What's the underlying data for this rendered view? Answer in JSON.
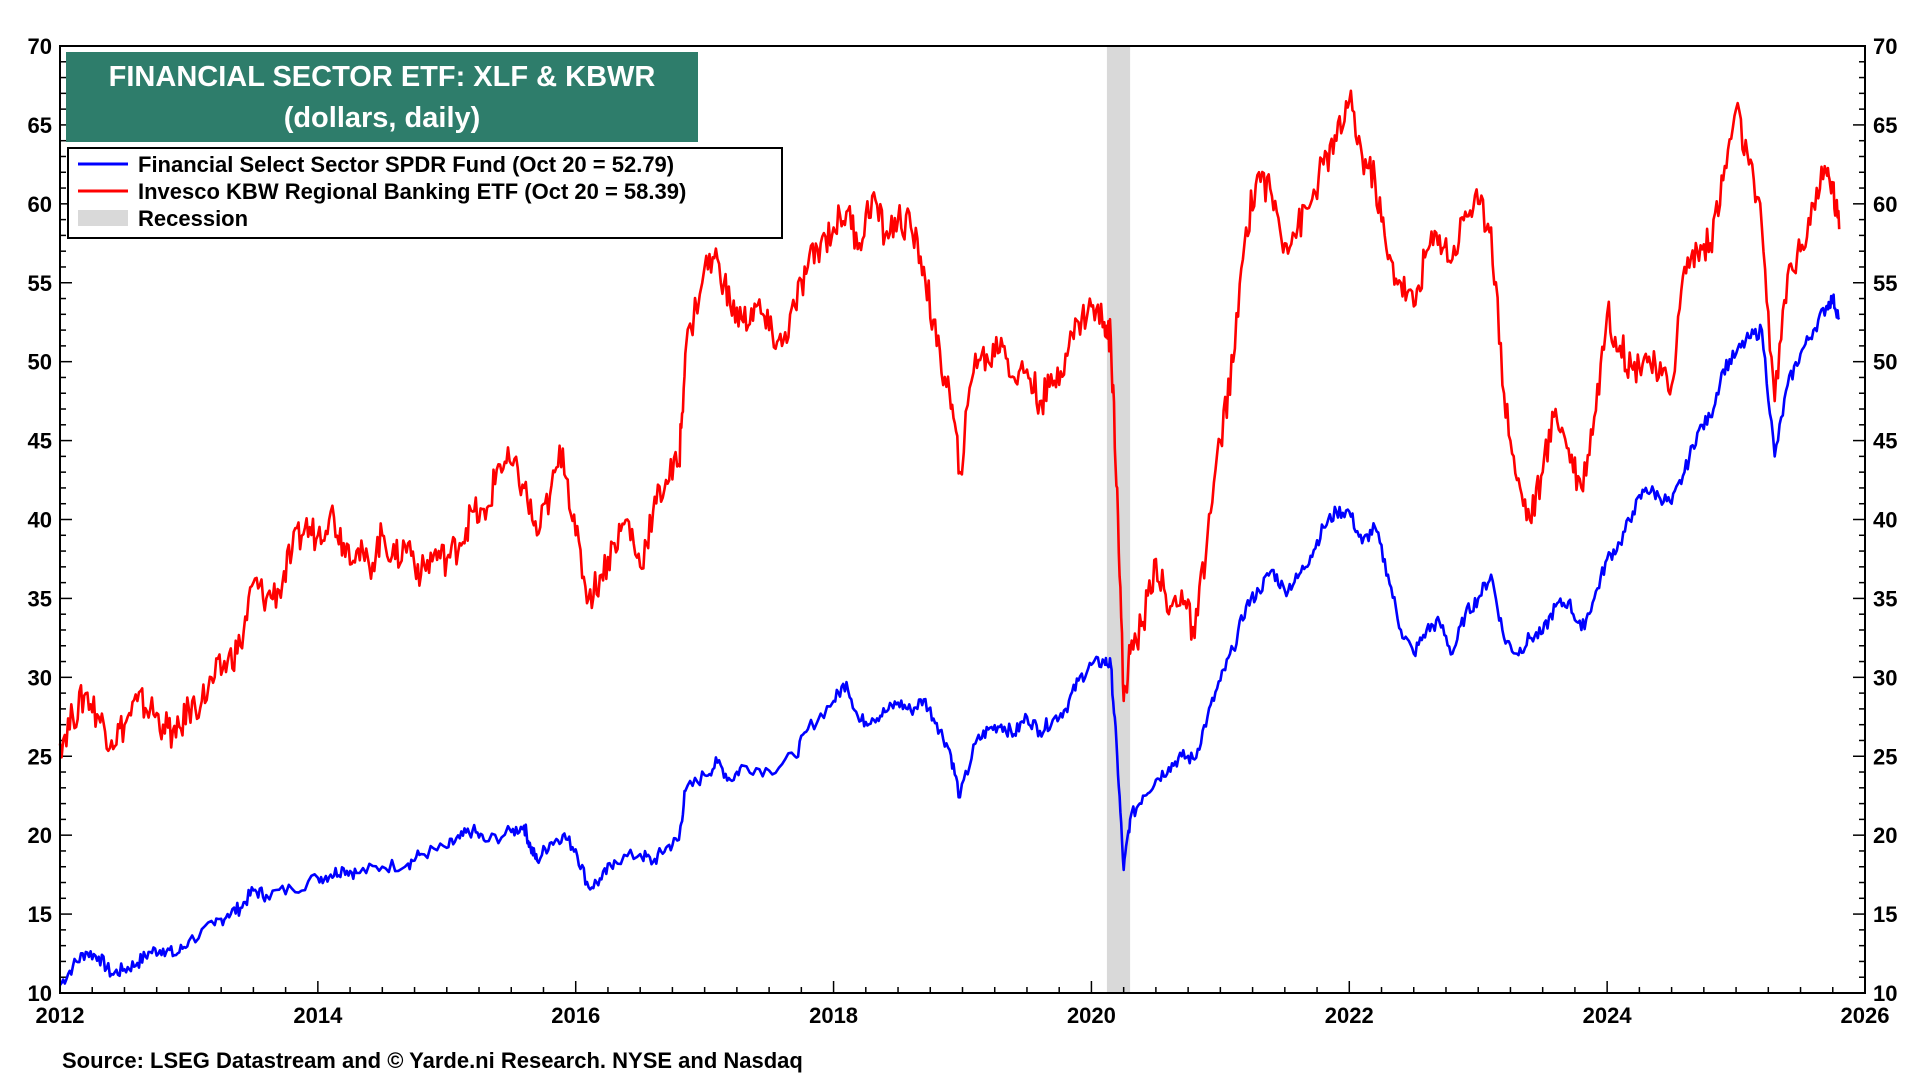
{
  "chart_data": {
    "type": "line",
    "title": "FINANCIAL SECTOR ETF: XLF & KBWR",
    "subtitle": "(dollars, daily)",
    "xlim": [
      2012,
      2026
    ],
    "ylim": [
      10,
      70
    ],
    "x_ticks": [
      "2012",
      "2014",
      "2016",
      "2018",
      "2020",
      "2022",
      "2024",
      "2026"
    ],
    "x_tick_values": [
      2012,
      2014,
      2016,
      2018,
      2020,
      2022,
      2024,
      2026
    ],
    "y_ticks": [
      "10",
      "15",
      "20",
      "25",
      "30",
      "35",
      "40",
      "45",
      "50",
      "55",
      "60",
      "65",
      "70"
    ],
    "y_tick_values": [
      10,
      15,
      20,
      25,
      30,
      35,
      40,
      45,
      50,
      55,
      60,
      65,
      70
    ],
    "legend_position": "top-left",
    "grid": false,
    "recession": {
      "label": "Recession",
      "start": 2020.12,
      "end": 2020.3,
      "color": "#d9d9d9"
    },
    "series": [
      {
        "name": "Financial Select Sector SPDR Fund (Oct 20 = 52.79)",
        "color": "#0000ff",
        "points": [
          [
            2012.0,
            10.5
          ],
          [
            2012.1,
            11.7
          ],
          [
            2012.2,
            12.6
          ],
          [
            2012.3,
            12.3
          ],
          [
            2012.4,
            11.2
          ],
          [
            2012.5,
            11.5
          ],
          [
            2012.6,
            11.9
          ],
          [
            2012.7,
            12.6
          ],
          [
            2012.8,
            12.8
          ],
          [
            2012.9,
            12.4
          ],
          [
            2013.0,
            13.3
          ],
          [
            2013.2,
            14.3
          ],
          [
            2013.3,
            15.0
          ],
          [
            2013.4,
            15.4
          ],
          [
            2013.5,
            16.5
          ],
          [
            2013.6,
            16.2
          ],
          [
            2013.8,
            16.6
          ],
          [
            2014.0,
            17.3
          ],
          [
            2014.1,
            17.5
          ],
          [
            2014.2,
            17.9
          ],
          [
            2014.3,
            17.6
          ],
          [
            2014.5,
            18.0
          ],
          [
            2014.7,
            18.2
          ],
          [
            2014.8,
            18.8
          ],
          [
            2015.0,
            19.2
          ],
          [
            2015.1,
            19.8
          ],
          [
            2015.2,
            20.3
          ],
          [
            2015.3,
            19.6
          ],
          [
            2015.5,
            20.2
          ],
          [
            2015.6,
            20.6
          ],
          [
            2015.65,
            19.2
          ],
          [
            2015.7,
            18.4
          ],
          [
            2015.8,
            19.5
          ],
          [
            2015.9,
            20.0
          ],
          [
            2016.0,
            19.1
          ],
          [
            2016.1,
            16.7
          ],
          [
            2016.2,
            17.2
          ],
          [
            2016.3,
            18.4
          ],
          [
            2016.5,
            18.8
          ],
          [
            2016.6,
            18.3
          ],
          [
            2016.7,
            19.2
          ],
          [
            2016.8,
            19.7
          ],
          [
            2016.85,
            22.8
          ],
          [
            2017.0,
            23.8
          ],
          [
            2017.1,
            24.6
          ],
          [
            2017.2,
            23.5
          ],
          [
            2017.3,
            24.4
          ],
          [
            2017.5,
            24.1
          ],
          [
            2017.7,
            25.0
          ],
          [
            2017.8,
            26.7
          ],
          [
            2018.0,
            28.5
          ],
          [
            2018.1,
            29.7
          ],
          [
            2018.2,
            27.2
          ],
          [
            2018.3,
            27.4
          ],
          [
            2018.4,
            27.8
          ],
          [
            2018.5,
            28.4
          ],
          [
            2018.6,
            27.9
          ],
          [
            2018.7,
            28.6
          ],
          [
            2018.8,
            27.1
          ],
          [
            2018.9,
            25.4
          ],
          [
            2018.98,
            22.4
          ],
          [
            2019.1,
            25.8
          ],
          [
            2019.2,
            26.7
          ],
          [
            2019.3,
            27.0
          ],
          [
            2019.4,
            26.4
          ],
          [
            2019.5,
            27.5
          ],
          [
            2019.6,
            26.6
          ],
          [
            2019.7,
            27.3
          ],
          [
            2019.8,
            28.0
          ],
          [
            2019.9,
            29.8
          ],
          [
            2020.0,
            30.8
          ],
          [
            2020.1,
            31.0
          ],
          [
            2020.15,
            30.8
          ],
          [
            2020.2,
            25.0
          ],
          [
            2020.25,
            17.8
          ],
          [
            2020.3,
            21.0
          ],
          [
            2020.4,
            22.5
          ],
          [
            2020.5,
            23.5
          ],
          [
            2020.6,
            24.3
          ],
          [
            2020.7,
            25.0
          ],
          [
            2020.8,
            24.8
          ],
          [
            2020.9,
            27.5
          ],
          [
            2021.0,
            29.8
          ],
          [
            2021.1,
            31.8
          ],
          [
            2021.2,
            34.5
          ],
          [
            2021.3,
            35.5
          ],
          [
            2021.4,
            36.8
          ],
          [
            2021.5,
            35.5
          ],
          [
            2021.6,
            36.3
          ],
          [
            2021.7,
            37.7
          ],
          [
            2021.8,
            39.5
          ],
          [
            2021.9,
            40.5
          ],
          [
            2022.0,
            40.5
          ],
          [
            2022.1,
            38.5
          ],
          [
            2022.2,
            39.5
          ],
          [
            2022.3,
            36.5
          ],
          [
            2022.4,
            33.0
          ],
          [
            2022.5,
            31.5
          ],
          [
            2022.6,
            33.0
          ],
          [
            2022.7,
            33.5
          ],
          [
            2022.8,
            31.5
          ],
          [
            2022.9,
            34.0
          ],
          [
            2023.0,
            35.0
          ],
          [
            2023.1,
            36.5
          ],
          [
            2023.2,
            32.5
          ],
          [
            2023.3,
            31.5
          ],
          [
            2023.4,
            32.5
          ],
          [
            2023.5,
            32.8
          ],
          [
            2023.6,
            34.5
          ],
          [
            2023.7,
            34.8
          ],
          [
            2023.8,
            33.0
          ],
          [
            2023.9,
            35.0
          ],
          [
            2024.0,
            37.5
          ],
          [
            2024.1,
            38.5
          ],
          [
            2024.2,
            40.5
          ],
          [
            2024.3,
            42.0
          ],
          [
            2024.4,
            41.5
          ],
          [
            2024.5,
            41.0
          ],
          [
            2024.6,
            43.0
          ],
          [
            2024.7,
            45.5
          ],
          [
            2024.8,
            46.5
          ],
          [
            2024.9,
            49.5
          ],
          [
            2025.0,
            50.5
          ],
          [
            2025.1,
            51.5
          ],
          [
            2025.2,
            52.0
          ],
          [
            2025.3,
            44.0
          ],
          [
            2025.4,
            48.5
          ],
          [
            2025.5,
            50.5
          ],
          [
            2025.6,
            52.0
          ],
          [
            2025.7,
            53.5
          ],
          [
            2025.75,
            54.0
          ],
          [
            2025.8,
            52.79
          ]
        ]
      },
      {
        "name": "Invesco KBW Regional Banking ETF (Oct 20 = 58.39)",
        "color": "#ff0000",
        "points": [
          [
            2012.0,
            25.8
          ],
          [
            2012.1,
            27.5
          ],
          [
            2012.2,
            29.0
          ],
          [
            2012.3,
            27.5
          ],
          [
            2012.4,
            26.0
          ],
          [
            2012.5,
            27.0
          ],
          [
            2012.6,
            28.5
          ],
          [
            2012.7,
            28.0
          ],
          [
            2012.8,
            27.0
          ],
          [
            2012.9,
            26.2
          ],
          [
            2013.0,
            28.0
          ],
          [
            2013.1,
            28.5
          ],
          [
            2013.2,
            30.0
          ],
          [
            2013.3,
            31.0
          ],
          [
            2013.4,
            32.0
          ],
          [
            2013.5,
            36.0
          ],
          [
            2013.6,
            35.0
          ],
          [
            2013.7,
            35.5
          ],
          [
            2013.8,
            38.0
          ],
          [
            2013.9,
            39.5
          ],
          [
            2014.0,
            39.0
          ],
          [
            2014.1,
            40.5
          ],
          [
            2014.2,
            38.5
          ],
          [
            2014.3,
            38.0
          ],
          [
            2014.4,
            37.0
          ],
          [
            2014.5,
            39.0
          ],
          [
            2014.6,
            37.5
          ],
          [
            2014.7,
            38.5
          ],
          [
            2014.8,
            36.5
          ],
          [
            2014.9,
            37.8
          ],
          [
            2015.0,
            37.5
          ],
          [
            2015.1,
            38.5
          ],
          [
            2015.2,
            40.5
          ],
          [
            2015.3,
            40.0
          ],
          [
            2015.4,
            43.5
          ],
          [
            2015.5,
            43.5
          ],
          [
            2015.6,
            42.0
          ],
          [
            2015.7,
            39.0
          ],
          [
            2015.8,
            41.5
          ],
          [
            2015.9,
            44.5
          ],
          [
            2016.0,
            39.0
          ],
          [
            2016.1,
            35.0
          ],
          [
            2016.2,
            36.5
          ],
          [
            2016.3,
            38.5
          ],
          [
            2016.4,
            40.0
          ],
          [
            2016.5,
            37.0
          ],
          [
            2016.6,
            40.5
          ],
          [
            2016.7,
            42.5
          ],
          [
            2016.8,
            43.5
          ],
          [
            2016.85,
            50.5
          ],
          [
            2017.0,
            56.0
          ],
          [
            2017.1,
            56.5
          ],
          [
            2017.2,
            53.5
          ],
          [
            2017.3,
            52.5
          ],
          [
            2017.4,
            53.5
          ],
          [
            2017.5,
            52.0
          ],
          [
            2017.6,
            51.0
          ],
          [
            2017.7,
            53.5
          ],
          [
            2017.8,
            56.0
          ],
          [
            2017.9,
            57.5
          ],
          [
            2018.0,
            58.5
          ],
          [
            2018.1,
            59.5
          ],
          [
            2018.2,
            57.5
          ],
          [
            2018.3,
            60.5
          ],
          [
            2018.4,
            58.0
          ],
          [
            2018.5,
            59.0
          ],
          [
            2018.6,
            58.5
          ],
          [
            2018.7,
            56.0
          ],
          [
            2018.8,
            51.0
          ],
          [
            2018.9,
            48.0
          ],
          [
            2018.98,
            43.0
          ],
          [
            2019.1,
            50.5
          ],
          [
            2019.2,
            50.0
          ],
          [
            2019.3,
            51.5
          ],
          [
            2019.4,
            49.0
          ],
          [
            2019.5,
            49.5
          ],
          [
            2019.6,
            47.5
          ],
          [
            2019.7,
            48.5
          ],
          [
            2019.8,
            50.5
          ],
          [
            2019.9,
            52.5
          ],
          [
            2020.0,
            53.5
          ],
          [
            2020.1,
            52.5
          ],
          [
            2020.15,
            51.5
          ],
          [
            2020.2,
            42.0
          ],
          [
            2020.25,
            28.5
          ],
          [
            2020.3,
            31.5
          ],
          [
            2020.4,
            33.5
          ],
          [
            2020.5,
            37.5
          ],
          [
            2020.6,
            34.0
          ],
          [
            2020.7,
            35.5
          ],
          [
            2020.8,
            32.5
          ],
          [
            2020.9,
            39.0
          ],
          [
            2021.0,
            45.0
          ],
          [
            2021.1,
            50.0
          ],
          [
            2021.2,
            58.5
          ],
          [
            2021.3,
            62.0
          ],
          [
            2021.4,
            60.5
          ],
          [
            2021.5,
            57.5
          ],
          [
            2021.6,
            58.5
          ],
          [
            2021.7,
            60.0
          ],
          [
            2021.8,
            62.5
          ],
          [
            2021.9,
            64.0
          ],
          [
            2022.0,
            66.5
          ],
          [
            2022.1,
            63.0
          ],
          [
            2022.2,
            61.5
          ],
          [
            2022.3,
            56.5
          ],
          [
            2022.4,
            55.0
          ],
          [
            2022.5,
            53.5
          ],
          [
            2022.6,
            57.0
          ],
          [
            2022.7,
            58.0
          ],
          [
            2022.8,
            56.5
          ],
          [
            2022.9,
            59.5
          ],
          [
            2023.0,
            60.0
          ],
          [
            2023.1,
            58.5
          ],
          [
            2023.2,
            48.0
          ],
          [
            2023.3,
            42.5
          ],
          [
            2023.4,
            40.0
          ],
          [
            2023.5,
            43.0
          ],
          [
            2023.6,
            47.0
          ],
          [
            2023.7,
            44.5
          ],
          [
            2023.8,
            42.0
          ],
          [
            2023.9,
            46.5
          ],
          [
            2024.0,
            53.0
          ],
          [
            2024.1,
            51.0
          ],
          [
            2024.2,
            49.5
          ],
          [
            2024.3,
            50.5
          ],
          [
            2024.4,
            49.0
          ],
          [
            2024.5,
            48.5
          ],
          [
            2024.6,
            56.0
          ],
          [
            2024.7,
            57.0
          ],
          [
            2024.8,
            57.5
          ],
          [
            2024.9,
            61.5
          ],
          [
            2025.0,
            66.0
          ],
          [
            2025.1,
            62.5
          ],
          [
            2025.2,
            58.5
          ],
          [
            2025.3,
            47.5
          ],
          [
            2025.4,
            55.5
          ],
          [
            2025.5,
            57.0
          ],
          [
            2025.6,
            60.0
          ],
          [
            2025.7,
            62.0
          ],
          [
            2025.75,
            61.0
          ],
          [
            2025.8,
            58.39
          ]
        ]
      }
    ]
  },
  "legend": {
    "items": [
      {
        "label": "Financial Select Sector SPDR Fund (Oct 20 = 52.79)",
        "color": "#0000ff"
      },
      {
        "label": "Invesco KBW Regional Banking ETF (Oct 20 = 58.39)",
        "color": "#ff0000"
      },
      {
        "label": "Recession",
        "color": "#d9d9d9"
      }
    ]
  },
  "title_box_color": "#2e7d6b",
  "source": "Source: LSEG Datastream and © Yarde.ni Research. NYSE and Nasdaq"
}
